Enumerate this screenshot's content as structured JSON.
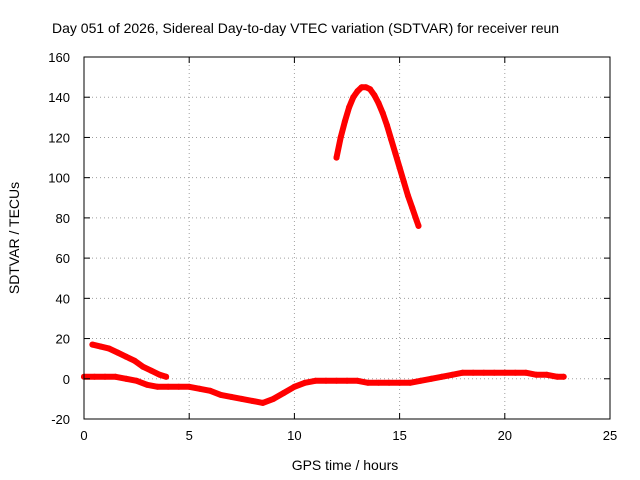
{
  "chart_data": {
    "type": "line",
    "title": "Day 051 of 2026, Sidereal Day-to-day VTEC variation (SDTVAR) for receiver reun",
    "xlabel": "GPS time / hours",
    "ylabel": "SDTVAR / TECUs",
    "xlim": [
      0,
      25
    ],
    "ylim": [
      -20,
      160
    ],
    "xticks": [
      0,
      5,
      10,
      15,
      20,
      25
    ],
    "yticks": [
      -20,
      0,
      20,
      40,
      60,
      80,
      100,
      120,
      140,
      160
    ],
    "grid": true,
    "color": "#ff0000",
    "series": [
      {
        "name": "baseline",
        "x": [
          0.0,
          0.5,
          1.0,
          1.5,
          2.0,
          2.5,
          3.0,
          3.5,
          4.0,
          4.5,
          5.0,
          5.5,
          6.0,
          6.5,
          7.0,
          7.5,
          8.0,
          8.5,
          9.0,
          9.5,
          10.0,
          10.5,
          11.0,
          11.5,
          12.0,
          12.5,
          13.0,
          13.5,
          14.0,
          14.5,
          15.0,
          15.5,
          16.0,
          16.5,
          17.0,
          17.5,
          18.0,
          18.5,
          19.0,
          19.5,
          20.0,
          20.5,
          21.0,
          21.5,
          22.0,
          22.5,
          22.8
        ],
        "y": [
          1,
          1,
          1,
          1,
          0,
          -1,
          -3,
          -4,
          -4,
          -4,
          -4,
          -5,
          -6,
          -8,
          -9,
          -10,
          -11,
          -12,
          -10,
          -7,
          -4,
          -2,
          -1,
          -1,
          -1,
          -1,
          -1,
          -2,
          -2,
          -2,
          -2,
          -2,
          -1,
          0,
          1,
          2,
          3,
          3,
          3,
          3,
          3,
          3,
          3,
          2,
          2,
          1,
          1
        ]
      },
      {
        "name": "early-decay",
        "x": [
          0.4,
          0.8,
          1.2,
          1.6,
          2.0,
          2.4,
          2.8,
          3.2,
          3.6,
          3.9
        ],
        "y": [
          17,
          16,
          15,
          13,
          11,
          9,
          6,
          4,
          2,
          1
        ]
      },
      {
        "name": "peak",
        "x": [
          12.0,
          12.2,
          12.4,
          12.6,
          12.8,
          13.0,
          13.2,
          13.4,
          13.6,
          13.8,
          14.0,
          14.2,
          14.4,
          14.6,
          14.8,
          15.0,
          15.2,
          15.4,
          15.6,
          15.8,
          15.9
        ],
        "y": [
          110,
          120,
          128,
          135,
          140,
          143,
          145,
          145,
          144,
          141,
          137,
          132,
          126,
          119,
          112,
          105,
          98,
          91,
          85,
          79,
          76
        ]
      }
    ]
  }
}
